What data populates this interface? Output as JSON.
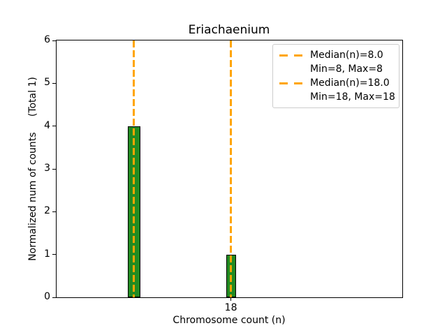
{
  "chart_data": {
    "type": "bar",
    "title": "Eriachaenium",
    "xlabel": "Chromosome count (n)",
    "ylabel": "Normalized num of counts     (Total 1)",
    "bars": [
      {
        "x": 8,
        "value": 4,
        "width_units": 1.3
      },
      {
        "x": 18,
        "value": 1,
        "width_units": 1.0
      }
    ],
    "median_lines": [
      {
        "x": 8,
        "label": "Median(n)=8.0"
      },
      {
        "x": 18,
        "label": "Median(n)=18.0"
      }
    ],
    "xlim": [
      0,
      35.7
    ],
    "ylim": [
      0,
      6
    ],
    "yticks": [
      0,
      1,
      2,
      3,
      4,
      5,
      6
    ],
    "xticks": [
      18
    ],
    "grid": false,
    "colors": {
      "bar_fill": "#228B22",
      "bar_edge": "#000000",
      "median_line": "#FFA500",
      "spine": "#000000"
    },
    "legend": {
      "position": "upper right",
      "entries": [
        {
          "marker": "dashed-line",
          "label": "Median(n)=8.0"
        },
        {
          "marker": "none",
          "label": "Min=8, Max=8"
        },
        {
          "marker": "dashed-line",
          "label": "Median(n)=18.0"
        },
        {
          "marker": "none",
          "label": "Min=18, Max=18"
        }
      ]
    }
  }
}
